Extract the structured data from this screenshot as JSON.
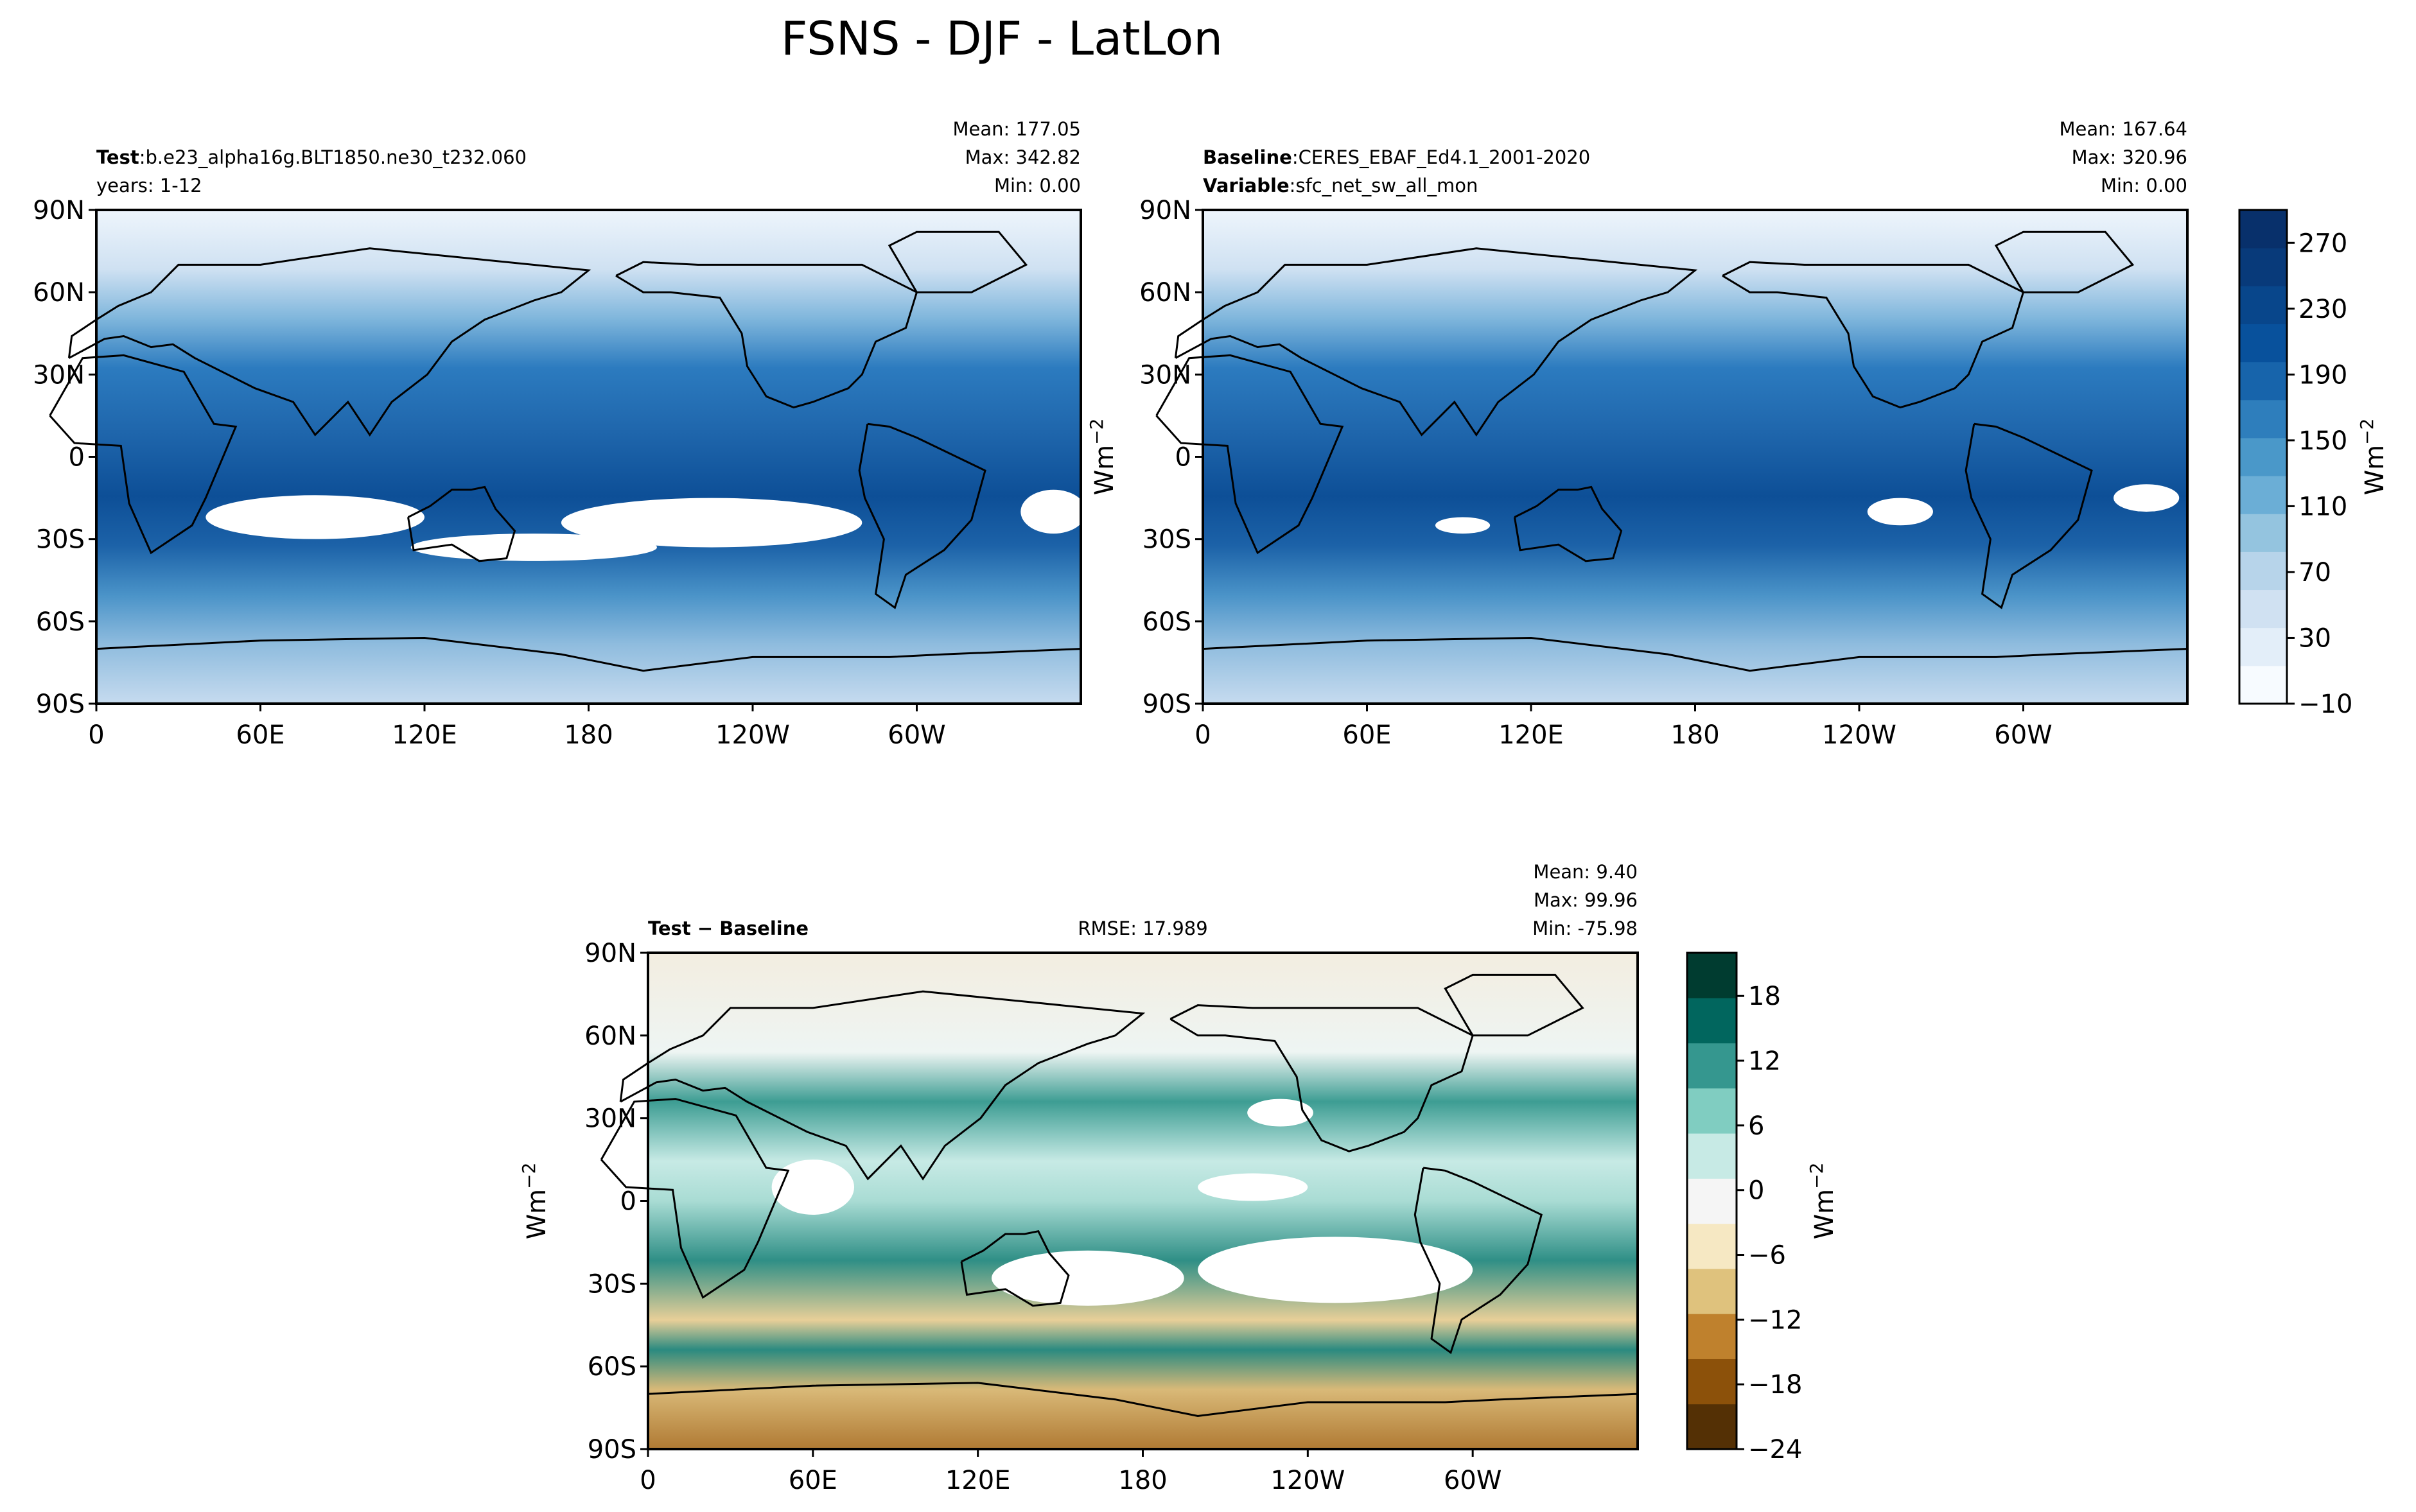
{
  "title": "FSNS - DJF - LatLon",
  "chart_data": [
    {
      "type": "heatmap",
      "name": "test",
      "header": {
        "label": "Test",
        "sep": ":",
        "value": "b.e23_alpha16g.BLT1850.ne30_t232.060",
        "line2": "years: 1-12"
      },
      "stats": {
        "mean": "Mean: 177.05",
        "max": "Max: 342.82",
        "min": "Min:  0.00"
      },
      "xticks": [
        "0",
        "60E",
        "120E",
        "180",
        "120W",
        "60W"
      ],
      "yticks": [
        "90N",
        "60N",
        "30N",
        "0",
        "30S",
        "60S",
        "90S"
      ],
      "xlim": [
        0,
        360
      ],
      "ylim": [
        -90,
        90
      ]
    },
    {
      "type": "heatmap",
      "name": "baseline",
      "header": {
        "label": "Baseline",
        "sep": ":",
        "value": "CERES_EBAF_Ed4.1_2001-2020",
        "label2": "Variable",
        "value2": "sfc_net_sw_all_mon"
      },
      "stats": {
        "mean": "Mean: 167.64",
        "max": "Max: 320.96",
        "min": "Min:  0.00"
      },
      "xticks": [
        "0",
        "60E",
        "120E",
        "180",
        "120W",
        "60W"
      ],
      "yticks": [
        "90N",
        "60N",
        "30N",
        "0",
        "30S",
        "60S",
        "90S"
      ],
      "xlim": [
        0,
        360
      ],
      "ylim": [
        -90,
        90
      ],
      "ylabel": "Wm",
      "colorbar": {
        "ticks": [
          "270",
          "230",
          "190",
          "150",
          "110",
          "70",
          "30",
          "−10"
        ],
        "tick_values": [
          270,
          230,
          190,
          150,
          110,
          70,
          30,
          -10
        ],
        "range": [
          -10,
          290
        ],
        "label": "Wm",
        "colors": [
          "#f7fbff",
          "#e3eef9",
          "#d0e1f2",
          "#b7d4ea",
          "#94c4df",
          "#6baed6",
          "#4a98c9",
          "#2e7ebc",
          "#1764ab",
          "#08519c",
          "#08468b",
          "#083a7a",
          "#08306b"
        ]
      }
    },
    {
      "type": "heatmap",
      "name": "difference",
      "header": {
        "label": "Test − Baseline",
        "rmse": "RMSE: 17.989"
      },
      "stats": {
        "mean": "Mean:  9.40",
        "max": "Max: 99.96",
        "min": "Min: -75.98"
      },
      "xticks": [
        "0",
        "60E",
        "120E",
        "180",
        "120W",
        "60W"
      ],
      "yticks": [
        "90N",
        "60N",
        "30N",
        "0",
        "30S",
        "60S",
        "90S"
      ],
      "xlim": [
        0,
        360
      ],
      "ylim": [
        -90,
        90
      ],
      "ylabel": "Wm",
      "colorbar": {
        "ticks": [
          "18",
          "12",
          "6",
          "0",
          "−6",
          "−12",
          "−18",
          "−24"
        ],
        "tick_values": [
          18,
          12,
          6,
          0,
          -6,
          -12,
          -18,
          -24
        ],
        "range": [
          -24,
          22
        ],
        "label": "Wm",
        "colors": [
          "#543005",
          "#8c510a",
          "#bf812d",
          "#dfc27d",
          "#f6e8c3",
          "#f5f5f5",
          "#c7eae5",
          "#80cdc1",
          "#35978f",
          "#01665e",
          "#003c30"
        ]
      }
    }
  ]
}
